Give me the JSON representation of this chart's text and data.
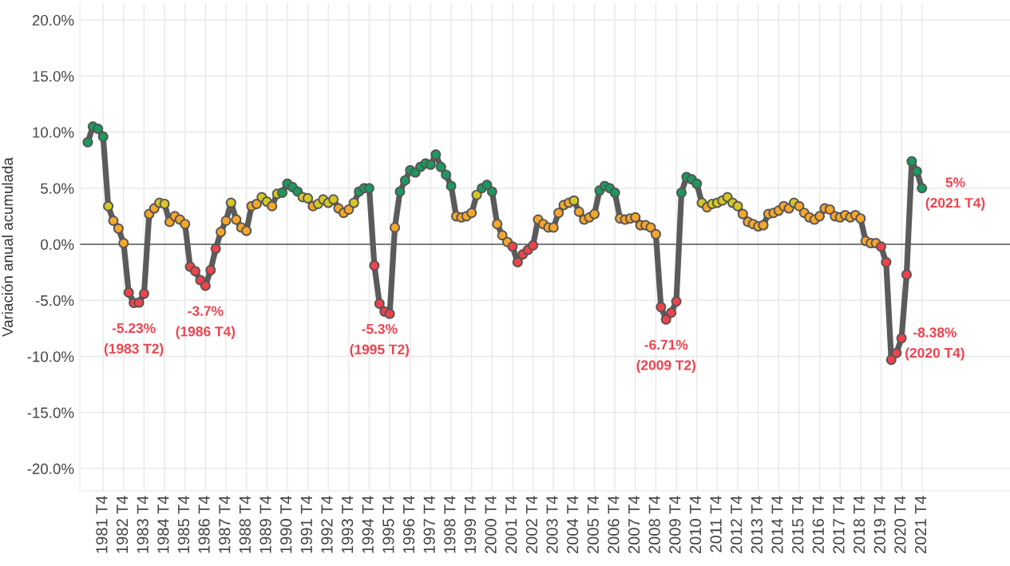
{
  "chart_data": {
    "type": "line",
    "ylabel": "Variación anual acumulada",
    "categories": [
      null,
      null,
      null,
      "1981 T4",
      null,
      null,
      null,
      "1982 T4",
      null,
      null,
      null,
      "1983 T4",
      null,
      null,
      null,
      "1984 T4",
      null,
      null,
      null,
      "1985 T4",
      null,
      null,
      null,
      "1986 T4",
      null,
      null,
      null,
      "1987 T4",
      null,
      null,
      null,
      "1988 T4",
      null,
      null,
      null,
      "1989 T4",
      null,
      null,
      null,
      "1990 T4",
      null,
      null,
      null,
      "1991 T4",
      null,
      null,
      null,
      "1992 T4",
      null,
      null,
      null,
      "1993 T4",
      null,
      null,
      null,
      "1994 T4",
      null,
      null,
      null,
      "1995 T4",
      null,
      null,
      null,
      "1996 T4",
      null,
      null,
      null,
      "1997 T4",
      null,
      null,
      null,
      "1998 T4",
      null,
      null,
      null,
      "1999 T4",
      null,
      null,
      null,
      "2000 T4",
      null,
      null,
      null,
      "2001 T4",
      null,
      null,
      null,
      "2002 T4",
      null,
      null,
      null,
      "2003 T4",
      null,
      null,
      null,
      "2004 T4",
      null,
      null,
      null,
      "2005 T4",
      null,
      null,
      null,
      "2006 T4",
      null,
      null,
      null,
      "2007 T4",
      null,
      null,
      null,
      "2008 T4",
      null,
      null,
      null,
      "2009 T4",
      null,
      null,
      null,
      "2010 T4",
      null,
      null,
      null,
      "2011 T4",
      null,
      null,
      null,
      "2012 T4",
      null,
      null,
      null,
      "2013 T4",
      null,
      null,
      null,
      "2014 T4",
      null,
      null,
      null,
      "2015 T4",
      null,
      null,
      null,
      "2016 T4",
      null,
      null,
      null,
      "2017 T4",
      null,
      null,
      null,
      "2018 T4",
      null,
      null,
      null,
      "2019 T4",
      null,
      null,
      null,
      "2020 T4",
      null,
      null,
      null,
      "2021 T4"
    ],
    "series": [
      {
        "color": "#5b5b5b",
        "values": [
          9.1,
          10.5,
          10.3,
          9.6,
          3.4,
          2.1,
          1.4,
          0.1,
          -4.3,
          -5.23,
          -5.2,
          -4.4,
          2.7,
          3.2,
          3.7,
          3.6,
          2.0,
          2.5,
          2.2,
          1.8,
          -2.0,
          -2.4,
          -3.2,
          -3.7,
          -2.3,
          -0.4,
          1.1,
          2.1,
          3.7,
          2.2,
          1.5,
          1.2,
          3.4,
          3.6,
          4.2,
          3.8,
          3.4,
          4.5,
          4.6,
          5.4,
          5.1,
          4.7,
          4.2,
          4.1,
          3.4,
          3.6,
          4.0,
          3.7,
          4.0,
          3.2,
          2.8,
          3.1,
          3.7,
          4.7,
          5.0,
          5.0,
          -1.9,
          -5.3,
          -6.0,
          -6.2,
          1.5,
          4.7,
          5.7,
          6.6,
          6.4,
          6.9,
          7.2,
          7.1,
          8.0,
          6.9,
          6.2,
          5.2,
          2.5,
          2.4,
          2.5,
          2.8,
          4.4,
          5.0,
          5.3,
          4.7,
          1.8,
          0.8,
          0.2,
          -0.2,
          -1.6,
          -0.9,
          -0.5,
          -0.1,
          2.2,
          1.8,
          1.5,
          1.5,
          2.8,
          3.5,
          3.7,
          3.9,
          2.9,
          2.2,
          2.4,
          2.7,
          4.8,
          5.2,
          5.0,
          4.6,
          2.3,
          2.2,
          2.3,
          2.4,
          1.7,
          1.7,
          1.5,
          0.9,
          -5.6,
          -6.71,
          -6.1,
          -5.1,
          4.6,
          6.0,
          5.8,
          5.4,
          3.7,
          3.3,
          3.6,
          3.7,
          3.9,
          4.2,
          3.7,
          3.4,
          2.7,
          2.0,
          1.8,
          1.6,
          1.7,
          2.7,
          2.8,
          3.0,
          3.4,
          3.2,
          3.7,
          3.4,
          2.8,
          2.4,
          2.2,
          2.5,
          3.2,
          3.1,
          2.5,
          2.4,
          2.6,
          2.4,
          2.6,
          2.3,
          0.3,
          0.1,
          0.1,
          -0.2,
          -1.6,
          -10.3,
          -9.7,
          -8.38,
          -2.7,
          7.4,
          6.5,
          5
        ],
        "colors": [
          "#1b9a5e",
          "#1b9a5e",
          "#1b9a5e",
          "#1b9a5e",
          "#d5c824",
          "#f6a62b",
          "#f6a62b",
          "#f6a62b",
          "#ef434b",
          "#ef434b",
          "#ef434b",
          "#ef434b",
          "#f6a62b",
          "#f6a62b",
          "#d5c824",
          "#d5c824",
          "#f6a62b",
          "#f6a62b",
          "#f6a62b",
          "#f6a62b",
          "#ef434b",
          "#ef434b",
          "#ef434b",
          "#ef434b",
          "#ef434b",
          "#ef434b",
          "#f6a62b",
          "#f6a62b",
          "#d5c824",
          "#f6a62b",
          "#f6a62b",
          "#f6a62b",
          "#f6a62b",
          "#f6a62b",
          "#d5c824",
          "#d5c824",
          "#f6a62b",
          "#d5c824",
          "#1b9a5e",
          "#1b9a5e",
          "#1b9a5e",
          "#1b9a5e",
          "#d5c824",
          "#d5c824",
          "#f6a62b",
          "#d5c824",
          "#d5c824",
          "#d5c824",
          "#d5c824",
          "#f6a62b",
          "#f6a62b",
          "#f6a62b",
          "#d5c824",
          "#1b9a5e",
          "#1b9a5e",
          "#1b9a5e",
          "#ef434b",
          "#ef434b",
          "#ef434b",
          "#ef434b",
          "#f6a62b",
          "#1b9a5e",
          "#1b9a5e",
          "#1b9a5e",
          "#1b9a5e",
          "#1b9a5e",
          "#1b9a5e",
          "#1b9a5e",
          "#1b9a5e",
          "#1b9a5e",
          "#1b9a5e",
          "#1b9a5e",
          "#f6a62b",
          "#f6a62b",
          "#f6a62b",
          "#f6a62b",
          "#d5c824",
          "#1b9a5e",
          "#1b9a5e",
          "#1b9a5e",
          "#f6a62b",
          "#f6a62b",
          "#f6a62b",
          "#ef434b",
          "#ef434b",
          "#ef434b",
          "#ef434b",
          "#ef434b",
          "#f6a62b",
          "#f6a62b",
          "#f6a62b",
          "#f6a62b",
          "#f6a62b",
          "#f6a62b",
          "#f6a62b",
          "#d5c824",
          "#f6a62b",
          "#f6a62b",
          "#f6a62b",
          "#f6a62b",
          "#1b9a5e",
          "#1b9a5e",
          "#1b9a5e",
          "#1b9a5e",
          "#f6a62b",
          "#f6a62b",
          "#f6a62b",
          "#f6a62b",
          "#f6a62b",
          "#f6a62b",
          "#f6a62b",
          "#f6a62b",
          "#ef434b",
          "#ef434b",
          "#ef434b",
          "#ef434b",
          "#1b9a5e",
          "#1b9a5e",
          "#1b9a5e",
          "#1b9a5e",
          "#d5c824",
          "#f6a62b",
          "#d5c824",
          "#d5c824",
          "#d5c824",
          "#d5c824",
          "#d5c824",
          "#d5c824",
          "#f6a62b",
          "#f6a62b",
          "#f6a62b",
          "#f6a62b",
          "#f6a62b",
          "#f6a62b",
          "#f6a62b",
          "#f6a62b",
          "#f6a62b",
          "#f6a62b",
          "#d5c824",
          "#f6a62b",
          "#f6a62b",
          "#f6a62b",
          "#f6a62b",
          "#f6a62b",
          "#f6a62b",
          "#f6a62b",
          "#f6a62b",
          "#f6a62b",
          "#f6a62b",
          "#f6a62b",
          "#f6a62b",
          "#f6a62b",
          "#f6a62b",
          "#f6a62b",
          "#f6a62b",
          "#ef434b",
          "#ef434b",
          "#ef434b",
          "#ef434b",
          "#ef434b",
          "#ef434b",
          "#1b9a5e",
          "#1b9a5e",
          "#1b9a5e"
        ]
      }
    ],
    "ylim": [
      -22,
      21.5
    ],
    "yticks": [
      {
        "value": -20,
        "label": "-20.0%"
      },
      {
        "value": -15,
        "label": "-15.0%"
      },
      {
        "value": -10,
        "label": "-10.0%"
      },
      {
        "value": -5,
        "label": "-5.0%"
      },
      {
        "value": 0,
        "label": "0.0%"
      },
      {
        "value": 5,
        "label": "5.0%"
      },
      {
        "value": 10,
        "label": "10.0%"
      },
      {
        "value": 15,
        "label": "15.0%"
      },
      {
        "value": 20,
        "label": "20.0%"
      }
    ],
    "grid": true,
    "marker": "circle",
    "line_style": "solid",
    "ref_lines": [
      {
        "axis": "y",
        "value": 0,
        "color": "#555555"
      }
    ],
    "annotations": [
      {
        "text": "-5.23%\n(1983 T2)",
        "y": -5.23
      },
      {
        "text": "-3.7%\n(1986 T4)",
        "x": "1986 T4",
        "y": -3.7
      },
      {
        "text": "-5.3%\n(1995 T2)",
        "y": -5.3
      },
      {
        "text": "-6.71%\n(2009 T2)",
        "y": -6.71
      },
      {
        "text": "-8.38%\n(2020 T4)",
        "x": "2020 T4",
        "y": -8.38
      },
      {
        "text": "5%\n(2021 T4)",
        "x": "2021 T4",
        "y": 5
      }
    ]
  }
}
